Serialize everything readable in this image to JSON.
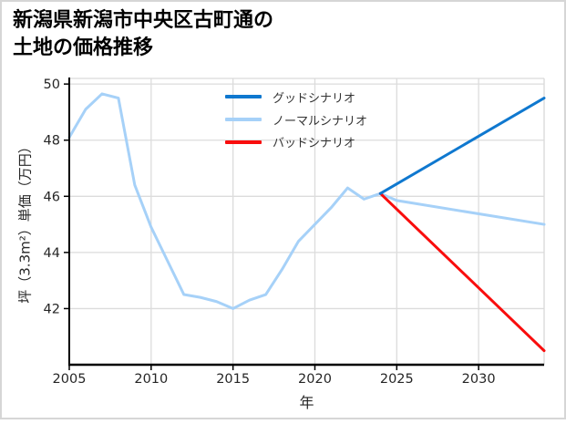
{
  "figure": {
    "title_line1": "新潟県新潟市中央区古町通の",
    "title_line2": "土地の価格推移"
  },
  "chart_data": {
    "type": "line",
    "title": "新潟県新潟市中央区古町通の土地の価格推移",
    "xlabel": "年",
    "ylabel": "坪（3.3m²）単価（万円）",
    "x_ticks": [
      2005,
      2010,
      2015,
      2020,
      2025,
      2030
    ],
    "y_ticks": [
      42,
      44,
      46,
      48,
      50
    ],
    "xlim": [
      2005,
      2034
    ],
    "ylim": [
      40.0,
      50.2
    ],
    "grid": true,
    "legend": {
      "position": "upper-center-inside",
      "entries": [
        "グッドシナリオ",
        "ノーマルシナリオ",
        "バッドシナリオ"
      ]
    },
    "series": [
      {
        "name": "グッドシナリオ",
        "slug": "good-scenario",
        "color": "#0f78cf",
        "z_order": 3,
        "x": [
          2024,
          2034
        ],
        "values": [
          46.1,
          49.5
        ]
      },
      {
        "name": "ノーマルシナリオ",
        "slug": "normal-scenario",
        "color": "#a6d1f8",
        "z_order": 1,
        "x": [
          2005,
          2006,
          2007,
          2008,
          2009,
          2010,
          2011,
          2012,
          2013,
          2014,
          2015,
          2016,
          2017,
          2018,
          2019,
          2020,
          2021,
          2022,
          2023,
          2024,
          2025,
          2034
        ],
        "values": [
          48.1,
          49.1,
          49.65,
          49.5,
          46.4,
          44.9,
          43.7,
          42.5,
          42.4,
          42.25,
          42.0,
          42.3,
          42.5,
          43.4,
          44.4,
          45.0,
          45.6,
          46.3,
          45.9,
          46.1,
          45.85,
          45.0
        ]
      },
      {
        "name": "バッドシナリオ",
        "slug": "bad-scenario",
        "color": "#f90d0d",
        "z_order": 2,
        "x": [
          2024,
          2034
        ],
        "values": [
          46.1,
          40.5
        ]
      }
    ]
  },
  "theme": {
    "background": "#ffffff",
    "border_color": "#d6d6d6",
    "grid_color": "#dcdcdc",
    "frame_color": "#d9d9d9",
    "axis_color": "#000000",
    "tick_label_color": "#262626",
    "legend_text_color": "#333333",
    "title_color": "#000000"
  }
}
